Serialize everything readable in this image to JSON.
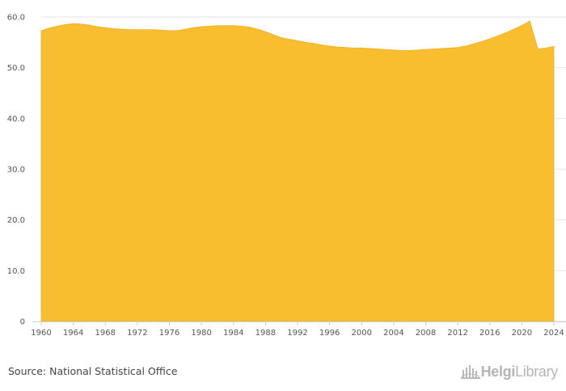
{
  "chart_data": {
    "type": "area",
    "title": "",
    "xlabel": "",
    "ylabel": "",
    "ylim": [
      0,
      60
    ],
    "xlim": [
      1960,
      2024
    ],
    "grid": true,
    "legend": "none",
    "color": "#F9BD30",
    "y_ticks": [
      0,
      10,
      20,
      30,
      40,
      50,
      60
    ],
    "y_tick_labels": [
      "0",
      "10.0",
      "20.0",
      "30.0",
      "40.0",
      "50.0",
      "60.0"
    ],
    "x_ticks": [
      1960,
      1964,
      1968,
      1972,
      1976,
      1980,
      1984,
      1988,
      1992,
      1996,
      2000,
      2004,
      2008,
      2012,
      2016,
      2020,
      2024
    ],
    "x": [
      1960,
      1961,
      1962,
      1963,
      1964,
      1965,
      1966,
      1967,
      1968,
      1969,
      1970,
      1971,
      1972,
      1973,
      1974,
      1975,
      1976,
      1977,
      1978,
      1979,
      1980,
      1981,
      1982,
      1983,
      1984,
      1985,
      1986,
      1987,
      1988,
      1989,
      1990,
      1991,
      1992,
      1993,
      1994,
      1995,
      1996,
      1997,
      1998,
      1999,
      2000,
      2001,
      2002,
      2003,
      2004,
      2005,
      2006,
      2007,
      2008,
      2009,
      2010,
      2011,
      2012,
      2013,
      2014,
      2015,
      2016,
      2017,
      2018,
      2019,
      2020,
      2021,
      2022,
      2023,
      2024
    ],
    "values": [
      57.3,
      57.8,
      58.2,
      58.5,
      58.7,
      58.6,
      58.4,
      58.1,
      57.9,
      57.7,
      57.6,
      57.5,
      57.5,
      57.5,
      57.5,
      57.4,
      57.3,
      57.3,
      57.6,
      57.9,
      58.1,
      58.2,
      58.3,
      58.3,
      58.3,
      58.2,
      58.0,
      57.6,
      57.1,
      56.5,
      55.9,
      55.6,
      55.3,
      55.0,
      54.8,
      54.5,
      54.3,
      54.1,
      54.0,
      53.9,
      53.9,
      53.8,
      53.7,
      53.6,
      53.5,
      53.4,
      53.4,
      53.5,
      53.6,
      53.7,
      53.8,
      53.9,
      54.0,
      54.3,
      54.7,
      55.2,
      55.7,
      56.3,
      56.9,
      57.6,
      58.3,
      59.2,
      53.7,
      53.9,
      54.2
    ]
  },
  "footer": {
    "source": "Source: National Statistical Office",
    "logo_bold": "Helgi",
    "logo_light": "Library"
  }
}
